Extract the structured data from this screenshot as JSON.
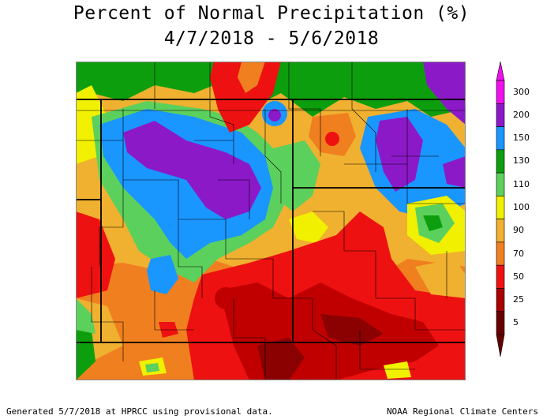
{
  "title": {
    "line1": "Percent of Normal Precipitation (%)",
    "line2": "4/7/2018 - 5/6/2018"
  },
  "legend": {
    "labels": [
      "300",
      "200",
      "150",
      "130",
      "110",
      "100",
      "90",
      "70",
      "50",
      "25",
      "5"
    ],
    "colors": [
      "#ee11ee",
      "#8c19c8",
      "#1a96ff",
      "#0d9e0d",
      "#5cd05c",
      "#f0f000",
      "#f0b030",
      "#f07f20",
      "#ee1111",
      "#aa0000",
      "#660000"
    ]
  },
  "colors": {
    "p5": "#8b0000",
    "p25": "#c00000",
    "p50": "#ee1111",
    "p70": "#f07f20",
    "p90": "#f0b030",
    "p100": "#f0f000",
    "p110": "#5cd05c",
    "p130": "#0d9e0d",
    "p150": "#1a96ff",
    "p200": "#8c19c8",
    "border": "#000000"
  },
  "footer": {
    "left": "Generated 5/7/2018 at HPRCC using provisional data.",
    "right": "NOAA Regional Climate Centers"
  }
}
